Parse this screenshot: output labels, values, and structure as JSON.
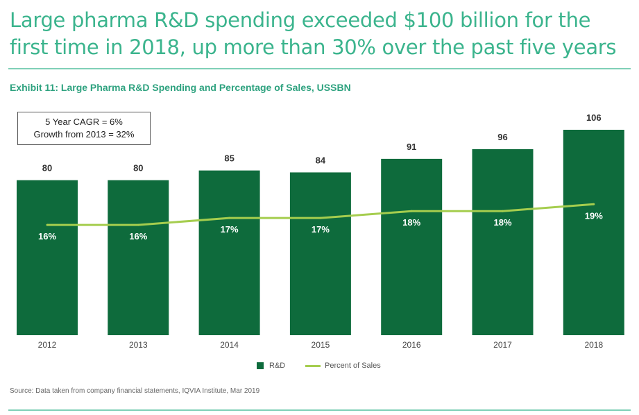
{
  "headline": "Large pharma R&D spending exceeded $100 billion for the first time in 2018, up more than 30% over the past five years",
  "exhibit_title": "Exhibit 11: Large Pharma R&D Spending and Percentage of Sales, USSBN",
  "annotation": {
    "line1": "5 Year CAGR = 6%",
    "line2": "Growth from 2013 = 32%"
  },
  "legend": {
    "bar_label": "R&D",
    "line_label": "Percent of Sales"
  },
  "source": "Source: Data taken from company financial statements, IQVIA Institute, Mar 2019",
  "colors": {
    "headline": "#3bb48d",
    "bar": "#0e6b3c",
    "line": "#a5cd4e",
    "rule": "#7fd0b7"
  },
  "chart_data": {
    "type": "bar",
    "title": "Exhibit 11: Large Pharma R&D Spending and Percentage of Sales, USSBN",
    "categories": [
      "2012",
      "2013",
      "2014",
      "2015",
      "2016",
      "2017",
      "2018"
    ],
    "series": [
      {
        "name": "R&D",
        "type": "bar",
        "values": [
          80,
          80,
          85,
          84,
          91,
          96,
          106
        ],
        "labels": [
          "80",
          "80",
          "85",
          "84",
          "91",
          "96",
          "106"
        ]
      },
      {
        "name": "Percent of Sales",
        "type": "line",
        "values": [
          16,
          16,
          17,
          17,
          18,
          18,
          19
        ],
        "labels": [
          "16%",
          "16%",
          "17%",
          "17%",
          "18%",
          "18%",
          "19%"
        ]
      }
    ],
    "ylim_bar": [
      0,
      106
    ],
    "ylim_line": [
      0,
      29.8
    ],
    "xlabel": "",
    "ylabel": "",
    "grid": false,
    "legend": "bottom-center"
  }
}
